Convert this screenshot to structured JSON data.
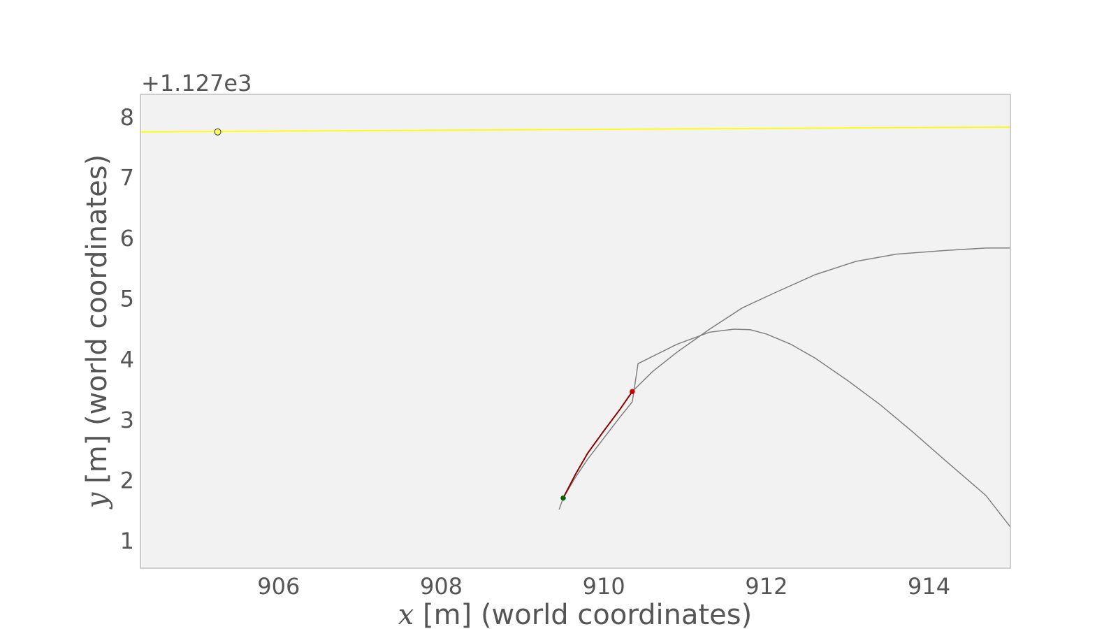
{
  "chart_data": {
    "type": "line",
    "title": "",
    "xlabel_var": "x",
    "xlabel_rest": " [m] (world coordinates)",
    "ylabel_var": "y",
    "ylabel_rest": " [m] (world coordinates)",
    "y_offset_text": "+1.127e3",
    "y_offset": 1127,
    "xlim": [
      904.3,
      915.0
    ],
    "ylim": [
      0.55,
      8.38
    ],
    "xticks": [
      906,
      908,
      910,
      912,
      914
    ],
    "yticks": [
      1,
      2,
      3,
      4,
      5,
      6,
      7,
      8
    ],
    "grid": false,
    "colors": {
      "background": "#f2f2f2",
      "frame": "#bfbfbf",
      "text": "#555555",
      "reference_line": "#ffff00",
      "trajectory": "#808080",
      "traveled": "#8b0000",
      "start_point": "#006400",
      "current_point": "#cc0000",
      "goal_point": "#ffff66"
    },
    "series": [
      {
        "role": "reference_line",
        "x": [
          904.3,
          915.0
        ],
        "y": [
          7.76,
          7.84
        ]
      },
      {
        "role": "trajectory",
        "x": [
          909.45,
          909.5,
          909.65,
          909.8,
          910.0,
          910.2,
          910.35,
          910.42,
          910.6,
          910.9,
          911.3,
          911.6,
          911.8,
          912.0,
          912.3,
          912.6,
          913.0,
          913.4,
          913.8,
          914.2,
          914.7,
          915.0
        ],
        "y": [
          1.52,
          1.71,
          2.05,
          2.35,
          2.7,
          3.05,
          3.3,
          3.93,
          4.05,
          4.25,
          4.45,
          4.5,
          4.49,
          4.42,
          4.25,
          4.02,
          3.65,
          3.25,
          2.8,
          2.33,
          1.75,
          1.23
        ]
      },
      {
        "role": "trajectory",
        "x": [
          910.35,
          910.6,
          910.9,
          911.3,
          911.7,
          912.1,
          912.6,
          913.1,
          913.6,
          914.2,
          914.7,
          915.0
        ],
        "y": [
          3.47,
          3.8,
          4.12,
          4.5,
          4.85,
          5.1,
          5.4,
          5.62,
          5.74,
          5.8,
          5.84,
          5.84
        ]
      },
      {
        "role": "traveled",
        "x": [
          909.5,
          909.65,
          909.8,
          910.0,
          910.2,
          910.35
        ],
        "y": [
          1.71,
          2.1,
          2.45,
          2.82,
          3.18,
          3.47
        ]
      }
    ],
    "points": [
      {
        "role": "start_point",
        "x": 909.5,
        "y": 1.71
      },
      {
        "role": "current_point",
        "x": 910.35,
        "y": 3.47
      },
      {
        "role": "goal_point",
        "x": 905.25,
        "y": 7.76
      }
    ]
  }
}
